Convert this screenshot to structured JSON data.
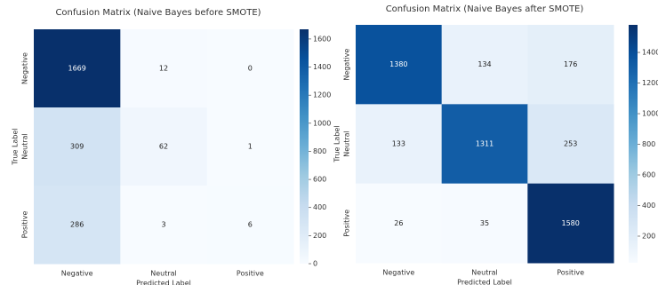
{
  "chart_data": [
    {
      "type": "heatmap",
      "title": "Confusion Matrix (Naive Bayes before SMOTE)",
      "x_label": "Predicted Label",
      "y_label": "True Label",
      "x_categories": [
        "Negative",
        "Neutral",
        "Positive"
      ],
      "y_categories": [
        "Negative",
        "Neutral",
        "Positive"
      ],
      "values": [
        [
          1669,
          12,
          0
        ],
        [
          309,
          62,
          1
        ],
        [
          286,
          3,
          6
        ]
      ],
      "zlim": [
        0,
        1669
      ],
      "zticks": [
        0,
        200,
        400,
        600,
        800,
        1000,
        1200,
        1400,
        1600
      ],
      "colors": [
        "#f7fbff",
        "#deebf7",
        "#c6dbef",
        "#9ecae1",
        "#6baed6",
        "#4292c6",
        "#2171b5",
        "#08519c",
        "#08306b"
      ]
    },
    {
      "type": "heatmap",
      "title": "Confusion Matrix (Naive Bayes after SMOTE)",
      "x_label": "Predicted Label",
      "y_label": "True Label",
      "x_categories": [
        "Negative",
        "Neutral",
        "Positive"
      ],
      "y_categories": [
        "Negative",
        "Neutral",
        "Positive"
      ],
      "values": [
        [
          1380,
          134,
          176
        ],
        [
          133,
          1311,
          253
        ],
        [
          26,
          35,
          1580
        ]
      ],
      "zlim": [
        26,
        1580
      ],
      "zticks": [
        200,
        400,
        600,
        800,
        1000,
        1200,
        1400
      ],
      "colors": [
        "#f7fbff",
        "#deebf7",
        "#c6dbef",
        "#9ecae1",
        "#6baed6",
        "#4292c6",
        "#2171b5",
        "#08519c",
        "#08306b"
      ]
    }
  ]
}
